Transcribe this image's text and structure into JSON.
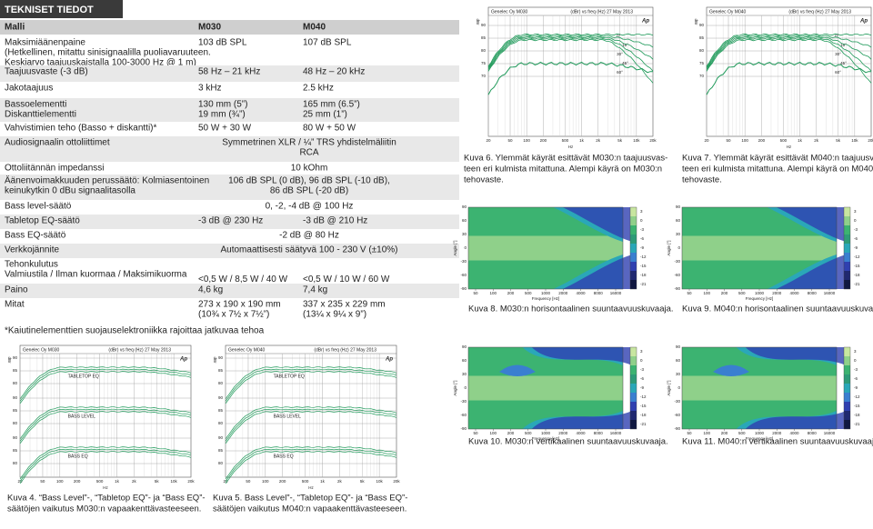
{
  "table": {
    "title": "TEKNISET TIEDOT",
    "header": [
      "Malli",
      "M030",
      "M040"
    ],
    "rows": [
      {
        "label": [
          "Maksimiäänenpaine",
          "(Hetkellinen, mitattu sinisignaalilla puoliavaruuteen.",
          "Keskiarvo taajuuskaistalla 100-3000 Hz @ 1 m)"
        ],
        "values": [
          [
            "103 dB SPL"
          ],
          [
            "107 dB SPL"
          ]
        ]
      },
      {
        "label": [
          "Taajuusvaste (-3 dB)"
        ],
        "values": [
          [
            "58 Hz – 21 kHz"
          ],
          [
            "48 Hz – 20 kHz"
          ]
        ]
      },
      {
        "label": [
          "Jakotaajuus"
        ],
        "values": [
          [
            "3 kHz"
          ],
          [
            "2.5 kHz"
          ]
        ]
      },
      {
        "label": [
          "Bassoelementti",
          "Diskanttielementti"
        ],
        "values": [
          [
            "130 mm (5”)",
            "19 mm (¾”)"
          ],
          [
            "165 mm (6.5”)",
            "25 mm (1”)"
          ]
        ]
      },
      {
        "label": [
          "Vahvistimien teho (Basso + diskantti)*"
        ],
        "values": [
          [
            "50 W + 30 W"
          ],
          [
            "80 W + 50 W"
          ]
        ]
      },
      {
        "label": [
          "Audiosignaalin ottoliittimet"
        ],
        "span": [
          "Symmetrinen XLR / ¼” TRS yhdistelmäliitin",
          "RCA"
        ]
      },
      {
        "label": [
          "Ottoliitännän impedanssi"
        ],
        "span": [
          "10 kOhm"
        ]
      },
      {
        "label": [
          "Äänenvoimakkuuden perussäätö: Kolmiasentoinen",
          "keinukytkin 0 dBu signaalitasolla"
        ],
        "span": [
          "106 dB SPL (0 dB), 96 dB SPL (-10 dB),",
          "86 dB SPL (-20 dB)"
        ]
      },
      {
        "label": [
          "Bass level-säätö"
        ],
        "span": [
          "0, -2, -4 dB @ 100 Hz"
        ]
      },
      {
        "label": [
          "Tabletop EQ-säätö"
        ],
        "values": [
          [
            "-3 dB @ 230 Hz"
          ],
          [
            "-3 dB @ 210 Hz"
          ]
        ]
      },
      {
        "label": [
          "Bass EQ-säätö"
        ],
        "span": [
          "-2 dB @ 80 Hz"
        ]
      },
      {
        "label": [
          "Verkkojännite"
        ],
        "span": [
          "Automaattisesti säätyvä 100 - 230 V (±10%)"
        ]
      },
      {
        "label": [
          "Tehonkulutus",
          "   Valmiustila  / Ilman kuormaa / Maksimikuorma"
        ],
        "values": [
          [
            "<0,5 W / 8,5 W / 40 W"
          ],
          [
            "<0,5 W / 10 W / 60 W"
          ]
        ]
      },
      {
        "label": [
          "Paino"
        ],
        "values": [
          [
            "4,6 kg"
          ],
          [
            "7,4 kg"
          ]
        ]
      },
      {
        "label": [
          "Mitat"
        ],
        "values": [
          [
            "273 x 190 x 190 mm",
            "(10¾ x 7½ x 7½”)"
          ],
          [
            "337 x 235 x 229 mm",
            "(13¼  x 9¼ x 9”)"
          ]
        ]
      }
    ],
    "footnote": "*Kaiutinelementtien suojauselektroniikka rajoittaa jatkuvaa tehoa"
  },
  "axes": {
    "freq_xticks": [
      20,
      50,
      100,
      200,
      500,
      {
        "value": 1000,
        "label": "1k"
      },
      {
        "value": 2000,
        "label": "2k"
      },
      {
        "value": 5000,
        "label": "5k"
      },
      {
        "value": 10000,
        "label": "10k"
      },
      {
        "value": 20000,
        "label": "20k"
      }
    ],
    "freq_xlabel": "Hz",
    "ylabel": "dBr",
    "tag": "Ap",
    "subtitle": "(dBr) vs freq (Hz) 27 May 2013",
    "map_yticks": [
      "90",
      "60",
      "30",
      "0",
      "-30",
      "-60",
      "-90"
    ],
    "map_xticks": [
      "50",
      "100",
      "200",
      "500",
      "1000",
      "2000",
      "4000",
      "8000",
      "16000"
    ],
    "map_scale": [
      "3",
      "0",
      "-3",
      "-6",
      "-9",
      "-12",
      "-15",
      "-18",
      "-21"
    ],
    "map_ylabel": "Angle [°]",
    "map_xlabel": "Frequency [Hz]"
  },
  "freq_plots": [
    {
      "title": "Genelec Oy M030",
      "yticks": [
        "90",
        "85",
        "80",
        "75",
        "70"
      ],
      "angles": [
        "0°",
        "15°",
        "30°",
        "45°",
        "60°"
      ],
      "caption": [
        "Kuva 6. Ylemmät käyrät esittävät M030:n taajuusvas-",
        "teen eri kulmista mitattuna. Alempi käyrä on M030:n",
        "tehovaste."
      ]
    },
    {
      "title": "Genelec Oy M040",
      "yticks": [
        "90",
        "85",
        "80",
        "75",
        "70"
      ],
      "angles": [
        "0°",
        "15°",
        "30°",
        "45°",
        "60°"
      ],
      "caption": [
        "Kuva 7. Ylemmät käyrät esittävät M040:n taajuusvas-",
        "teen eri kulmista mitattuna. Alempi käyrä on M040:n",
        "tehovaste."
      ]
    }
  ],
  "eq_plots": [
    {
      "title": "Genelec Oy M030",
      "panels": [
        "TABLETOP EQ",
        "BASS LEVEL",
        "BASS EQ"
      ],
      "yticks": [
        "90",
        "85",
        "80"
      ],
      "caption": [
        "Kuva 4.  “Bass Level”-, “Tabletop EQ”- ja “Bass EQ”-",
        "säätöjen vaikutus M030:n vapaakenttävasteeseen."
      ]
    },
    {
      "title": "Genelec Oy M040",
      "panels": [
        "TABLETOP EQ",
        "BASS LEVEL",
        "BASS EQ"
      ],
      "yticks": [
        "90",
        "85",
        "80"
      ],
      "caption": [
        "Kuva 5.  Bass Level”-, “Tabletop EQ”- ja “Bass EQ”-",
        "säätöjen vaikutus M040:n vapaakenttävasteeseen."
      ]
    }
  ],
  "maps": [
    {
      "caption": "Kuva 8. M030:n horisontaalinen suuntaavuuskuvaaja."
    },
    {
      "caption": "Kuva 9. M040:n horisontaalinen suuntaavuuskuvaaja."
    },
    {
      "caption": "Kuva 10. M030:n vertikaalinen suuntaavuuskuvaaja."
    },
    {
      "caption": "Kuva 11. M040:n vertikaalinen suuntaavuuskuvaaja."
    }
  ]
}
